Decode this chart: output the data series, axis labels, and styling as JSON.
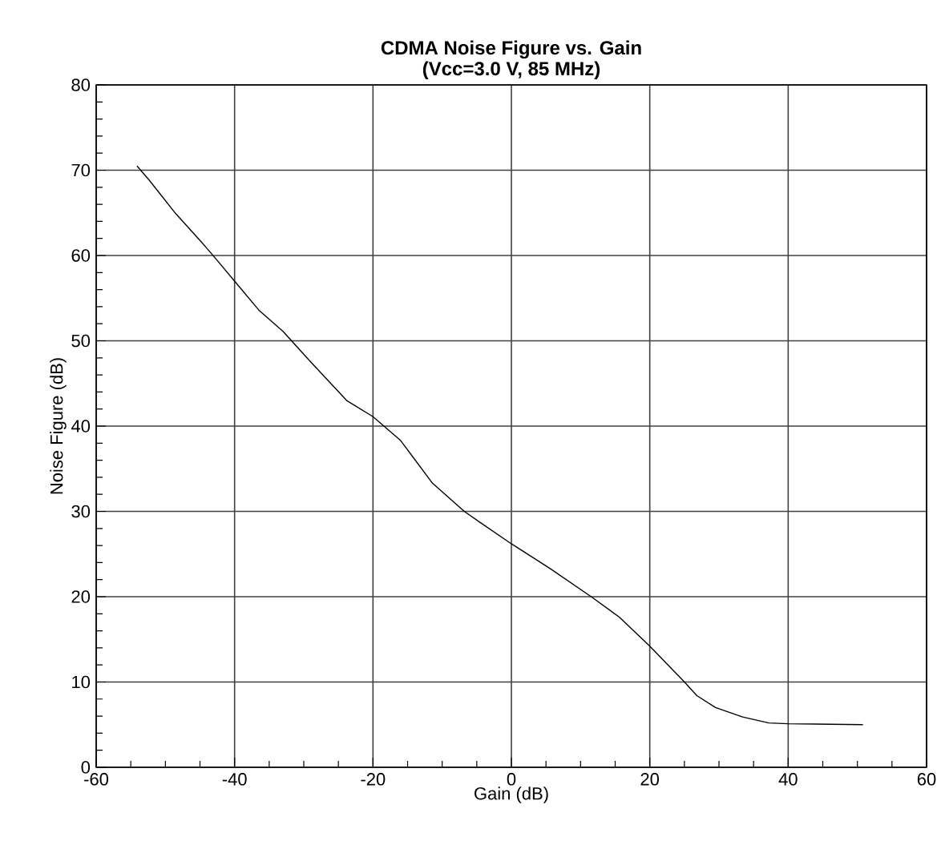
{
  "chart_data": {
    "type": "line",
    "title": "CDMA Noise Figure vs. Gain",
    "subtitle": "(Vcc=3.0 V, 85 MHz)",
    "xlabel": "Gain (dB)",
    "ylabel": "Noise Figure (dB)",
    "xlim": [
      -60,
      60
    ],
    "xticks": [
      -60,
      -40,
      -20,
      0,
      20,
      40,
      60
    ],
    "ylim": [
      0,
      80
    ],
    "yticks": [
      0,
      10,
      20,
      30,
      40,
      50,
      60,
      70,
      80
    ],
    "grid": true,
    "series": [
      {
        "color": "#000000",
        "x": [
          -54.1,
          -52.4,
          -48.5,
          -44.6,
          -42.9,
          -40,
          -36.5,
          -33,
          -29.2,
          -23.8,
          -20,
          -16,
          -11.4,
          -6.8,
          -4.5,
          0,
          5.6,
          11.7,
          15.6,
          20,
          24.9,
          26.8,
          29.5,
          33.4,
          37.2,
          40,
          50.8
        ],
        "values": [
          70.5,
          68.9,
          64.9,
          61.4,
          59.8,
          57,
          53.6,
          51.1,
          47.7,
          43,
          41.1,
          38.3,
          33.3,
          30,
          28.7,
          26.2,
          23.3,
          19.9,
          17.6,
          14.2,
          10.1,
          8.4,
          7,
          5.9,
          5.2,
          5.1,
          5.0
        ]
      }
    ]
  }
}
